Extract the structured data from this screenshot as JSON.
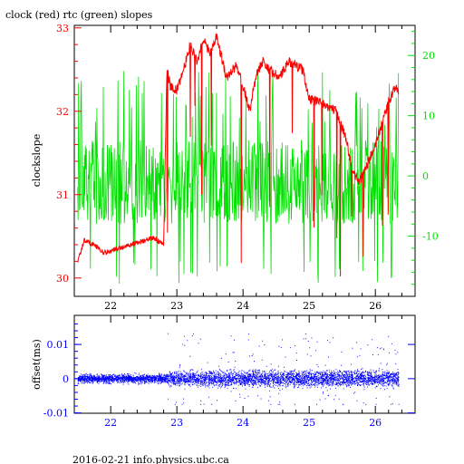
{
  "page": {
    "title": "clock (red) rtc (green) slopes",
    "footer": "2016-02-21 info.physics.ubc.ca"
  },
  "colors": {
    "clock": "#ff0000",
    "rtc": "#00e000",
    "offset": "#0000ff",
    "axis": "#000000"
  },
  "chart_data": [
    {
      "type": "line",
      "ylabel": "clockslope",
      "x_ticks": [
        "22",
        "23",
        "24",
        "25",
        "26"
      ],
      "xlim": [
        21.45,
        26.6
      ],
      "y_left": {
        "lim": [
          29.78,
          33.03
        ],
        "ticks": [
          "30",
          "31",
          "32",
          "33"
        ]
      },
      "y_right": {
        "lim": [
          -20,
          25
        ],
        "ticks": [
          "-10",
          "0",
          "10",
          "20"
        ]
      },
      "grid": false,
      "series": [
        {
          "name": "clock",
          "axis": "left",
          "color": "#ff0000",
          "x": [
            21.5,
            21.6,
            21.75,
            21.9,
            22.1,
            22.3,
            22.5,
            22.65,
            22.8,
            22.85,
            22.9,
            23.0,
            23.1,
            23.2,
            23.3,
            23.4,
            23.5,
            23.6,
            23.75,
            23.9,
            24.0,
            24.1,
            24.2,
            24.3,
            24.4,
            24.55,
            24.7,
            24.9,
            25.0,
            25.2,
            25.4,
            25.55,
            25.65,
            25.75,
            25.85,
            25.95,
            26.0,
            26.1,
            26.2,
            26.3,
            26.35
          ],
          "y": [
            30.2,
            30.45,
            30.4,
            30.3,
            30.35,
            30.4,
            30.45,
            30.48,
            30.4,
            32.5,
            32.3,
            32.25,
            32.5,
            32.8,
            32.6,
            32.85,
            32.7,
            32.9,
            32.4,
            32.55,
            32.3,
            32.0,
            32.45,
            32.6,
            32.5,
            32.4,
            32.6,
            32.5,
            32.15,
            32.1,
            32.0,
            31.7,
            31.3,
            31.15,
            31.3,
            31.5,
            31.6,
            31.85,
            32.1,
            32.3,
            32.2
          ]
        },
        {
          "name": "rtc",
          "axis": "right",
          "color": "#00e000",
          "x": [
            21.5,
            26.35
          ],
          "y": [
            -12,
            10
          ]
        }
      ]
    },
    {
      "type": "scatter",
      "ylabel": "offset(ms)",
      "x_ticks": [
        "22",
        "23",
        "24",
        "25",
        "26"
      ],
      "xlim": [
        21.45,
        26.6
      ],
      "ylim": [
        -0.0101,
        0.0185
      ],
      "y_ticks": [
        "-0.01",
        "0",
        "0.01"
      ],
      "grid": false,
      "series": [
        {
          "name": "offset",
          "color": "#0000ff",
          "x": [
            21.5,
            26.35
          ],
          "y": [
            -0.0075,
            0.0175
          ]
        }
      ]
    }
  ]
}
